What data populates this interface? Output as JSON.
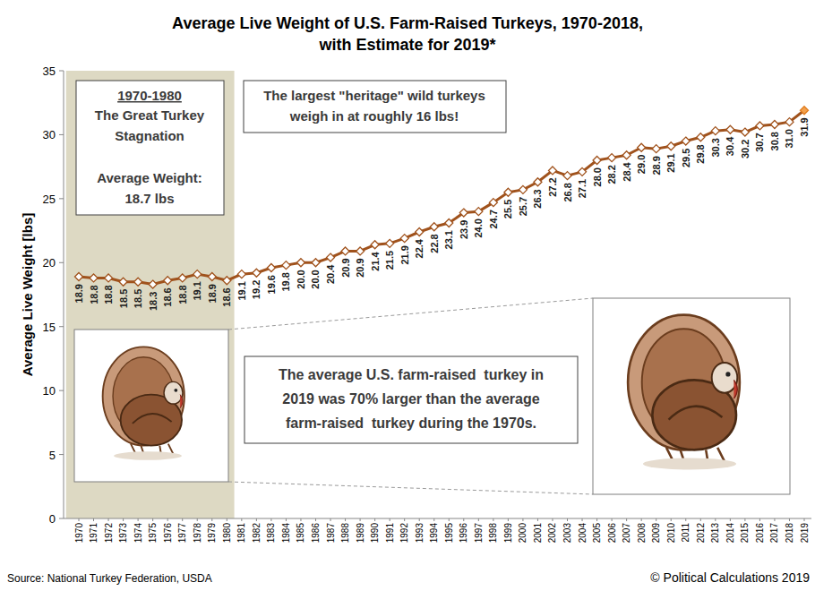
{
  "chart_data": {
    "type": "line",
    "title": "Average Live Weight of U.S. Farm-Raised Turkeys, 1970-2018,",
    "subtitle": "with Estimate for 2019*",
    "y_label": "Average Live Weight [lbs]",
    "categories": [
      "1970",
      "1971",
      "1972",
      "1973",
      "1974",
      "1975",
      "1976",
      "1977",
      "1978",
      "1979",
      "1980",
      "1981",
      "1982",
      "1983",
      "1984",
      "1985",
      "1986",
      "1987",
      "1988",
      "1989",
      "1990",
      "1991",
      "1992",
      "1993",
      "1994",
      "1995",
      "1996",
      "1997",
      "1998",
      "1999",
      "2000",
      "2001",
      "2002",
      "2003",
      "2004",
      "2005",
      "2006",
      "2007",
      "2008",
      "2009",
      "2010",
      "2011",
      "2012",
      "2013",
      "2014",
      "2015",
      "2016",
      "2017",
      "2018",
      "2019"
    ],
    "values": [
      18.9,
      18.8,
      18.8,
      18.5,
      18.5,
      18.3,
      18.6,
      18.8,
      19.1,
      18.9,
      18.6,
      19.1,
      19.2,
      19.6,
      19.8,
      20.0,
      20.0,
      20.4,
      20.9,
      20.9,
      21.4,
      21.5,
      21.9,
      22.4,
      22.8,
      23.1,
      23.9,
      24.0,
      24.7,
      25.5,
      25.7,
      26.3,
      27.2,
      26.8,
      27.1,
      28.0,
      28.2,
      28.4,
      29.0,
      28.9,
      29.1,
      29.5,
      29.8,
      30.3,
      30.4,
      30.2,
      30.7,
      30.8,
      31.0,
      31.9
    ],
    "value_labels": [
      "18.9",
      "18.8",
      "18.8",
      "18.5",
      "18.5",
      "18.3",
      "18.6",
      "18.8",
      "19.1",
      "18.9",
      "18.6",
      "19.1",
      "19.2",
      "19.6",
      "19.8",
      "20.0",
      "20.0",
      "20.4",
      "20.9",
      "20.9",
      "21.4",
      "21.5",
      "21.9",
      "22.4",
      "22.8",
      "23.1",
      "23.9",
      "24.0",
      "24.7",
      "25.5",
      "25.7",
      "26.3",
      "27.2",
      "26.8",
      "27.1",
      "28.0",
      "28.2",
      "28.4",
      "29.0",
      "28.9",
      "29.1",
      "29.5",
      "29.8",
      "30.3",
      "30.4",
      "30.2",
      "30.7",
      "30.8",
      "31.0",
      "31.9"
    ],
    "color": "#a0521c",
    "marker": "diamond",
    "line_style": "solid",
    "data_labels": true,
    "grid": false,
    "ylim": [
      0,
      35
    ],
    "yticks": [
      0,
      5,
      10,
      15,
      20,
      25,
      30,
      35
    ],
    "shaded_range": [
      "1970",
      "1980"
    ],
    "annotations": {
      "stagnation": [
        "1970-1980",
        "The Great Turkey",
        "Stagnation",
        "Average Weight:",
        "18.7 lbs"
      ],
      "heritage": [
        "The largest \"heritage\" wild turkeys",
        "weigh in at roughly 16 lbs!"
      ],
      "comparison": [
        "The average U.S. farm-raised  turkey in",
        "2019 was 70% larger than the average",
        "farm-raised  turkey during the 1970s."
      ]
    },
    "source": "Source: National Turkey Federation, USDA",
    "copyright": "© Political Calculations 2019"
  }
}
